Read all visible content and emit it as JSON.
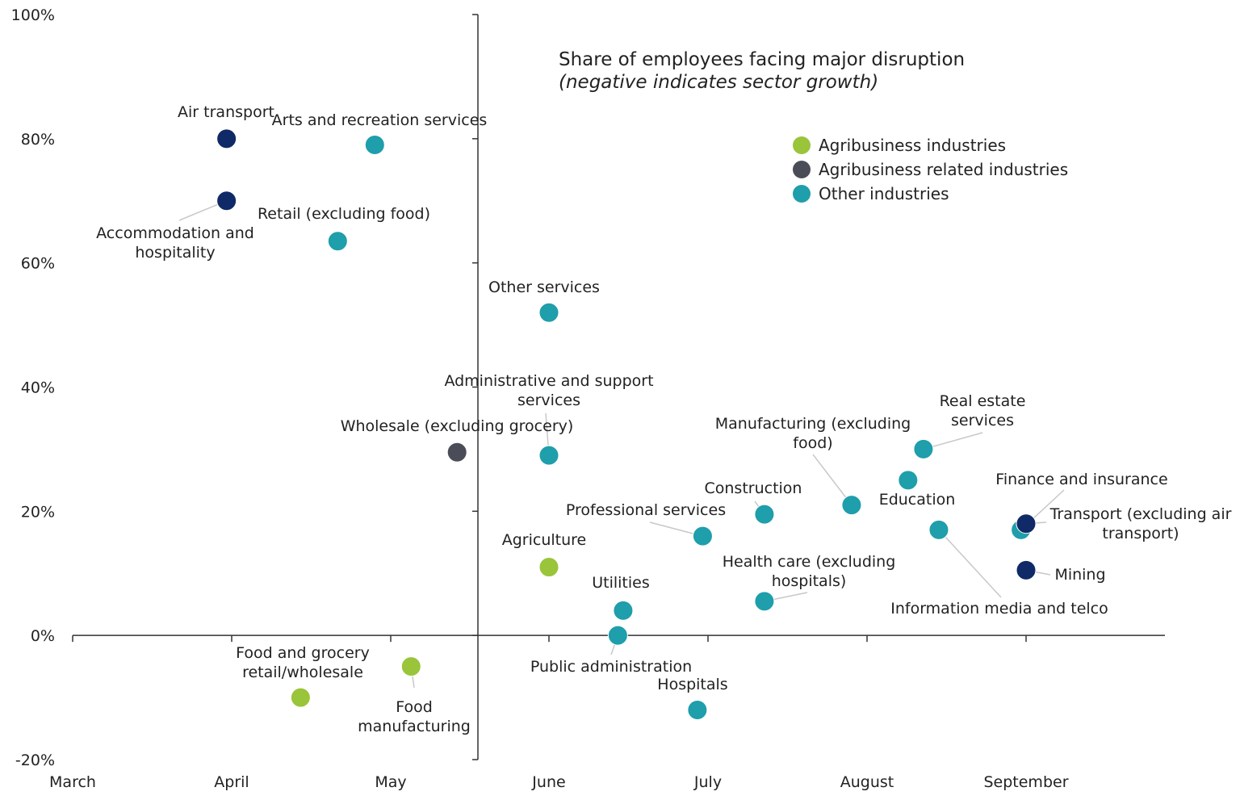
{
  "chart_data": {
    "type": "scatter",
    "title": "Share of employees facing major disruption",
    "subtitle": "(negative indicates sector growth)",
    "xlabel": "",
    "ylabel": "",
    "x_ticks": [
      "March",
      "April",
      "May",
      "June",
      "July",
      "August",
      "September"
    ],
    "y_ticks": [
      "100%",
      "80%",
      "60%",
      "40%",
      "20%",
      "0%",
      "-20%"
    ],
    "ylim": [
      -20,
      100
    ],
    "xlim": [
      "March",
      "September"
    ],
    "grid": false,
    "legend_position": "top-right",
    "colors": {
      "agri": "#9ac43a",
      "agri_related": "#4a4d57",
      "other": "#1f9eab",
      "transport": "#0f2a66"
    },
    "legend": [
      {
        "key": "agri",
        "label": "Agribusiness industries"
      },
      {
        "key": "agri_related",
        "label": "Agribusiness related industries"
      },
      {
        "key": "other",
        "label": "Other industries"
      }
    ],
    "points": [
      {
        "name": "Air transport",
        "x": "2020-03-31",
        "y": 80,
        "group": "transport"
      },
      {
        "name": "Accommodation and hospitality",
        "x": "2020-03-31",
        "y": 70,
        "group": "transport"
      },
      {
        "name": "Arts and recreation services",
        "x": "2020-04-28",
        "y": 79,
        "group": "other"
      },
      {
        "name": "Retail (excluding food)",
        "x": "2020-04-21",
        "y": 63.5,
        "group": "other"
      },
      {
        "name": "Other services",
        "x": "2020-06-01",
        "y": 52,
        "group": "other"
      },
      {
        "name": "Administrative and support services",
        "x": "2020-06-01",
        "y": 29,
        "group": "other"
      },
      {
        "name": "Wholesale (excluding grocery)",
        "x": "2020-05-14",
        "y": 29.5,
        "group": "agri_related"
      },
      {
        "name": "Agriculture",
        "x": "2020-06-01",
        "y": 11,
        "group": "agri"
      },
      {
        "name": "Food and grocery retail/wholesale",
        "x": "2020-04-14",
        "y": -10,
        "group": "agri"
      },
      {
        "name": "Food manufacturing",
        "x": "2020-05-05",
        "y": -5,
        "group": "agri"
      },
      {
        "name": "Utilities",
        "x": "2020-06-15",
        "y": 4,
        "group": "other"
      },
      {
        "name": "Public administration",
        "x": "2020-06-14",
        "y": 0,
        "group": "other"
      },
      {
        "name": "Hospitals",
        "x": "2020-06-29",
        "y": -12,
        "group": "other"
      },
      {
        "name": "Professional services",
        "x": "2020-06-30",
        "y": 16,
        "group": "other"
      },
      {
        "name": "Construction",
        "x": "2020-07-12",
        "y": 19.5,
        "group": "other"
      },
      {
        "name": "Health care (excluding hospitals)",
        "x": "2020-07-12",
        "y": 5.5,
        "group": "other"
      },
      {
        "name": "Manufacturing (excluding food)",
        "x": "2020-07-29",
        "y": 21,
        "group": "other"
      },
      {
        "name": "Education",
        "x": "2020-08-09",
        "y": 25,
        "group": "other"
      },
      {
        "name": "Real estate services",
        "x": "2020-08-12",
        "y": 30,
        "group": "other"
      },
      {
        "name": "Information media and telco",
        "x": "2020-08-15",
        "y": 17,
        "group": "other"
      },
      {
        "name": "Finance and insurance",
        "x": "2020-08-31",
        "y": 17,
        "group": "other"
      },
      {
        "name": "Transport (excluding air transport)",
        "x": "2020-09-01",
        "y": 18,
        "group": "transport"
      },
      {
        "name": "Mining",
        "x": "2020-09-01",
        "y": 10.5,
        "group": "transport"
      }
    ]
  }
}
